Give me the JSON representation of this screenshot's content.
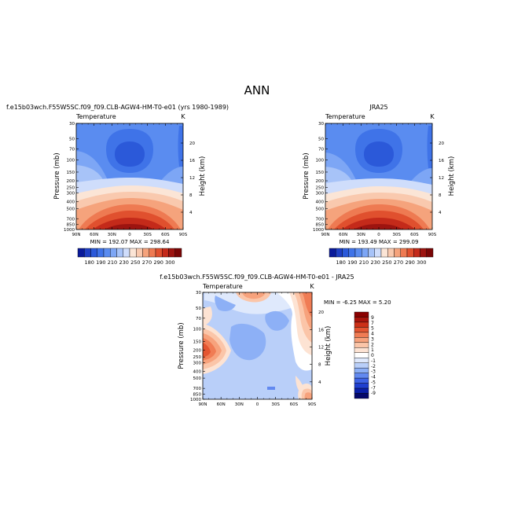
{
  "main_title": "ANN",
  "colors": {
    "zonal_scale": [
      "#0a1a9a",
      "#1f3fc4",
      "#2b59d9",
      "#3f73e8",
      "#5a8cf0",
      "#7da6f5",
      "#a7c3f8",
      "#cfddfb",
      "#fbe5d6",
      "#f9c9ae",
      "#f5a37c",
      "#ee7a52",
      "#e0502e",
      "#c42a1a",
      "#9d1410",
      "#7a0606"
    ],
    "diff_scale": [
      "#04086b",
      "#0a1fa8",
      "#1f3fd0",
      "#3e63e6",
      "#6289f0",
      "#8db0f6",
      "#b9cff9",
      "#dfe9fc",
      "#ffffff",
      "#fde3d3",
      "#fbc5a8",
      "#f7a27c",
      "#f07c54",
      "#e45531",
      "#cc3017",
      "#a9140c",
      "#8a0000"
    ]
  },
  "chart_data": [
    {
      "type": "heatmap",
      "title_left": "f.e15b03wch.F55W5SC.f09_f09.CLB-AGW4-HM-T0-e01 (yrs 1980-1989)",
      "subtitle_left": "Temperature",
      "subtitle_right": "K",
      "ylabel": "Pressure (mb)",
      "ylabel_right": "Height (km)",
      "x_ticks": [
        "90N",
        "60N",
        "30N",
        "0",
        "30S",
        "60S",
        "90S"
      ],
      "y_ticks": [
        "30",
        "50",
        "70",
        "100",
        "150",
        "200",
        "250",
        "300",
        "400",
        "500",
        "700",
        "850",
        "1000"
      ],
      "y_ticks_right": [
        "20",
        "16",
        "12",
        "8",
        "4"
      ],
      "stats": "MIN = 192.07   MAX = 298.64",
      "colorbar_labels": [
        "180",
        "190",
        "210",
        "230",
        "250",
        "270",
        "290",
        "300"
      ],
      "variable": "zonal mean temperature"
    },
    {
      "type": "heatmap",
      "title_center": "JRA25",
      "subtitle_left": "Temperature",
      "subtitle_right": "K",
      "ylabel": "Pressure (mb)",
      "ylabel_right": "Height (km)",
      "x_ticks": [
        "90N",
        "60N",
        "30N",
        "0",
        "30S",
        "60S",
        "90S"
      ],
      "y_ticks": [
        "30",
        "50",
        "70",
        "100",
        "150",
        "200",
        "250",
        "300",
        "400",
        "500",
        "700",
        "850",
        "1000"
      ],
      "y_ticks_right": [
        "20",
        "16",
        "12",
        "8",
        "4"
      ],
      "stats": "MIN = 193.49   MAX = 299.09",
      "colorbar_labels": [
        "180",
        "190",
        "210",
        "230",
        "250",
        "270",
        "290",
        "300"
      ],
      "variable": "zonal mean temperature"
    },
    {
      "type": "heatmap",
      "title_center": "f.e15b03wch.F55W5SC.f09_f09.CLB-AGW4-HM-T0-e01 - JRA25",
      "subtitle_left": "Temperature",
      "subtitle_right": "K",
      "ylabel": "Pressure (mb)",
      "ylabel_right": "Height (km)",
      "x_ticks": [
        "90N",
        "60N",
        "30N",
        "0",
        "30S",
        "60S",
        "90S"
      ],
      "y_ticks": [
        "30",
        "50",
        "70",
        "100",
        "150",
        "200",
        "250",
        "300",
        "400",
        "500",
        "700",
        "850",
        "1000"
      ],
      "y_ticks_right": [
        "20",
        "16",
        "12",
        "8",
        "4"
      ],
      "stats": "MIN =  -6.25   MAX =   5.20",
      "colorbar_labels": [
        "9",
        "7",
        "5",
        "4",
        "3",
        "2",
        "1",
        "0",
        "-1",
        "-2",
        "-3",
        "-4",
        "-5",
        "-7",
        "-9"
      ],
      "variable": "temperature difference"
    }
  ]
}
